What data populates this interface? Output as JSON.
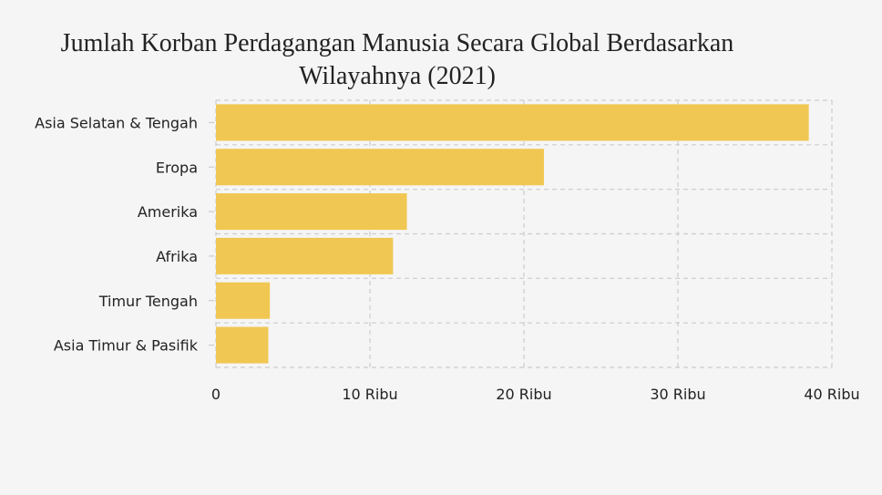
{
  "chart_data": {
    "type": "bar",
    "orientation": "horizontal",
    "title": "Jumlah Korban Perdagangan Manusia Secara Global Berdasarkan\nWilayahnya (2021)",
    "categories": [
      "Asia Selatan & Tengah",
      "Eropa",
      "Amerika",
      "Afrika",
      "Timur Tengah",
      "Asia Timur & Pasifik"
    ],
    "values": [
      38500,
      21300,
      12400,
      11500,
      3500,
      3400
    ],
    "xlim": [
      0,
      40000
    ],
    "x_ticks": [
      {
        "value": 0,
        "label": "0"
      },
      {
        "value": 10000,
        "label": "10 Ribu"
      },
      {
        "value": 20000,
        "label": "20 Ribu"
      },
      {
        "value": 30000,
        "label": "30 Ribu"
      },
      {
        "value": 40000,
        "label": "40 Ribu"
      }
    ],
    "grid": true,
    "bar_color": "#f0c752",
    "grid_color": "#cccccc"
  }
}
